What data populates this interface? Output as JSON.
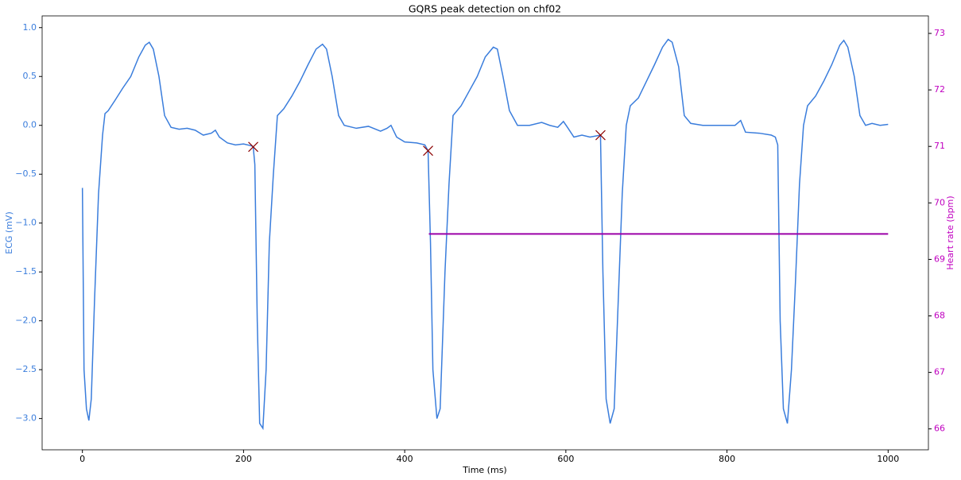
{
  "chart_data": {
    "type": "line",
    "title": "GQRS peak detection on chf02",
    "xlabel": "Time (ms)",
    "ylabel": "ECG (mV)",
    "y2label": "Heart rate (bpm)",
    "xlim": [
      -50,
      1050
    ],
    "xticks": [
      0,
      200,
      400,
      600,
      800,
      1000
    ],
    "ylim": [
      -3.32,
      1.12
    ],
    "yticks": [
      {
        "value": 1.0,
        "label": "1.0"
      },
      {
        "value": 0.5,
        "label": "0.5"
      },
      {
        "value": 0,
        "label": "0.0"
      },
      {
        "value": -0.5,
        "label": "−0.5"
      },
      {
        "value": -1.0,
        "label": "−1.0"
      },
      {
        "value": -1.5,
        "label": "−1.5"
      },
      {
        "value": -2.0,
        "label": "−2.0"
      },
      {
        "value": -2.5,
        "label": "−2.5"
      },
      {
        "value": -3.0,
        "label": "−3.0"
      }
    ],
    "y2lim": [
      65.63,
      73.31
    ],
    "y2ticks": [
      66,
      67,
      68,
      69,
      70,
      71,
      72,
      73
    ],
    "ycolor": "#3a7ddc",
    "y2color": "#c000c0",
    "series": [
      {
        "color": "#3a7ddc",
        "marker": "none",
        "x": [
          0,
          2,
          5,
          8,
          11,
          15,
          20,
          25,
          28,
          32,
          40,
          50,
          60,
          70,
          78,
          83,
          88,
          95,
          102,
          110,
          120,
          130,
          140,
          150,
          160,
          165,
          170,
          180,
          190,
          200,
          210,
          212,
          214,
          217,
          220,
          224,
          228,
          232,
          237,
          242,
          250,
          260,
          270,
          280,
          290,
          298,
          303,
          310,
          318,
          325,
          340,
          355,
          370,
          378,
          383,
          390,
          400,
          415,
          425,
          429,
          432,
          435,
          440,
          444,
          450,
          455,
          460,
          470,
          480,
          490,
          500,
          510,
          515,
          522,
          530,
          540,
          555,
          570,
          580,
          590,
          597,
          602,
          610,
          620,
          630,
          643,
          646,
          650,
          655,
          660,
          665,
          670,
          675,
          680,
          690,
          700,
          710,
          720,
          727,
          732,
          740,
          747,
          755,
          770,
          790,
          810,
          817,
          823,
          840,
          855,
          860,
          863,
          866,
          870,
          875,
          880,
          885,
          890,
          895,
          900,
          910,
          920,
          930,
          940,
          945,
          950,
          958,
          965,
          972,
          980,
          990,
          1000
        ],
        "values": [
          -0.64,
          -2.5,
          -2.9,
          -3.02,
          -2.8,
          -1.8,
          -0.7,
          -0.1,
          0.12,
          0.15,
          0.25,
          0.38,
          0.5,
          0.7,
          0.82,
          0.85,
          0.78,
          0.5,
          0.1,
          -0.02,
          -0.04,
          -0.03,
          -0.05,
          -0.1,
          -0.08,
          -0.05,
          -0.12,
          -0.18,
          -0.2,
          -0.19,
          -0.21,
          -0.22,
          -0.4,
          -2.0,
          -3.05,
          -3.1,
          -2.5,
          -1.2,
          -0.5,
          0.1,
          0.17,
          0.3,
          0.45,
          0.62,
          0.78,
          0.83,
          0.78,
          0.5,
          0.1,
          0.0,
          -0.03,
          -0.01,
          -0.06,
          -0.03,
          0.0,
          -0.12,
          -0.17,
          -0.18,
          -0.2,
          -0.26,
          -1.2,
          -2.5,
          -3.0,
          -2.9,
          -1.5,
          -0.6,
          0.1,
          0.2,
          0.35,
          0.5,
          0.7,
          0.8,
          0.78,
          0.5,
          0.15,
          0.0,
          0.0,
          0.03,
          0.0,
          -0.02,
          0.04,
          -0.02,
          -0.12,
          -0.1,
          -0.12,
          -0.1,
          -1.5,
          -2.8,
          -3.05,
          -2.9,
          -1.8,
          -0.7,
          0.0,
          0.2,
          0.28,
          0.45,
          0.62,
          0.8,
          0.88,
          0.85,
          0.6,
          0.1,
          0.02,
          0.0,
          0.0,
          0.0,
          0.05,
          -0.07,
          -0.08,
          -0.1,
          -0.12,
          -0.2,
          -2.0,
          -2.9,
          -3.05,
          -2.5,
          -1.6,
          -0.6,
          0.0,
          0.2,
          0.3,
          0.45,
          0.62,
          0.82,
          0.87,
          0.8,
          0.5,
          0.1,
          0.0,
          0.02,
          0.0,
          0.01
        ]
      },
      {
        "color": "#8b0000",
        "marker": "x",
        "x": [
          212,
          429,
          643
        ],
        "values": [
          -0.22,
          -0.26,
          -0.1
        ]
      },
      {
        "color": "#9b00a8",
        "marker": "none",
        "axis": "y2",
        "x": [
          430,
          1000
        ],
        "values": [
          69.45,
          69.45
        ]
      }
    ]
  }
}
